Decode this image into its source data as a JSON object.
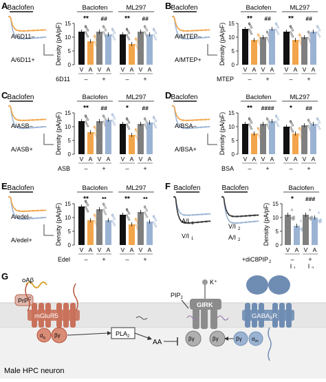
{
  "colors": {
    "black": "#111111",
    "orange": "#f2a54a",
    "grey": "#7f7f7f",
    "blue": "#9bb3d3",
    "membrane": "#e8e8e8",
    "mglur": "#c9715a",
    "girk": "#8c8c8c",
    "gabab": "#6f8db3"
  },
  "common": {
    "ylabel": "Density (pA/pF)",
    "drug_label": "Baclofen",
    "ml297_label": "ML297",
    "va": [
      "V",
      "A",
      "V",
      "A"
    ],
    "minus": "–",
    "plus": "+",
    "yticks": [
      "0",
      "5",
      "10",
      "15"
    ]
  },
  "panels": [
    {
      "letter": "A",
      "trace_top": "A/6D11–",
      "trace_bottom": "A/6D11+",
      "treatment": "6D11",
      "groups": [
        {
          "name": "Baclofen",
          "values": [
            12,
            8.5,
            12,
            11
          ],
          "sig1": "**",
          "sig2": "##"
        },
        {
          "name": "ML297",
          "values": [
            11,
            7.5,
            12,
            11
          ],
          "sig1": "**",
          "sig2": "##"
        }
      ]
    },
    {
      "letter": "B",
      "trace_top": "A/MTEP–",
      "trace_bottom": "A/MTEP+",
      "treatment": "MTEP",
      "groups": [
        {
          "name": "Baclofen",
          "values": [
            13,
            9,
            10,
            13
          ],
          "sig1": "**",
          "sig2": "##"
        },
        {
          "name": "ML297",
          "values": [
            12,
            9,
            10,
            12
          ],
          "sig1": "**",
          "sig2": "##"
        }
      ]
    },
    {
      "letter": "C",
      "trace_top": "A/ASB–",
      "trace_bottom": "A/ASB+",
      "treatment": "ASB",
      "groups": [
        {
          "name": "Baclofen",
          "values": [
            12,
            8,
            12,
            12.5
          ],
          "sig1": "**",
          "sig2": "##"
        },
        {
          "name": "ML297",
          "values": [
            11,
            7,
            11,
            11.5
          ],
          "sig1": "*",
          "sig2": "##"
        }
      ]
    },
    {
      "letter": "D",
      "trace_top": "A/BSA–",
      "trace_bottom": "A/BSA+",
      "treatment": "BSA",
      "groups": [
        {
          "name": "Baclofen",
          "values": [
            11,
            7.5,
            11,
            12
          ],
          "sig1": "**",
          "sig2": "####"
        },
        {
          "name": "ML297",
          "values": [
            10,
            7.5,
            10.5,
            11
          ],
          "sig1": "*",
          "sig2": "##"
        }
      ]
    },
    {
      "letter": "E",
      "trace_top": "A/edel–",
      "trace_bottom": "A/edel+",
      "treatment": "Edel",
      "groups": [
        {
          "name": "Baclofen",
          "values": [
            14,
            9,
            13,
            9
          ],
          "sig1": "**",
          "sig2": "**"
        },
        {
          "name": "ML297",
          "values": [
            11,
            7.5,
            12,
            8.5
          ],
          "sig1": "**",
          "sig2": "**"
        }
      ]
    }
  ],
  "panelF": {
    "letter": "F",
    "trace1_top": "A/I",
    "trace1_top_sub": "1",
    "trace1_bottom": "V/I",
    "trace1_bottom_sub": "1",
    "trace2_top": "V/I",
    "trace2_top_sub": "2",
    "trace2_bottom": "A/I",
    "trace2_bottom_sub": "2",
    "group": "Baclofen",
    "values": [
      11,
      7,
      11,
      10
    ],
    "sig1": "*",
    "sig2": "###",
    "treatment": "+diC8PIP",
    "treatment_sub": "2",
    "i_labels": [
      "I",
      "I"
    ],
    "i_subs": [
      "1",
      "2"
    ]
  },
  "panelG": {
    "letter": "G",
    "oab": "oAβ",
    "prpc": "PrP",
    "prpc_sup": "C",
    "mglur5": "mGluR5",
    "alpha_q": "α",
    "alpha_q_sub": "q",
    "by": "βγ",
    "pla2": "PLA",
    "pla2_sub": "2",
    "aa": "AA",
    "pip2": "PIP",
    "pip2_sub": "2",
    "girk": "GIRK",
    "kplus": "K⁺",
    "gabab": "GABA",
    "gabab_sub": "B",
    "gabab_r": "R",
    "alpha_io": "α",
    "alpha_io_sub": "i/o",
    "neuron": "Male HPC neuron"
  }
}
